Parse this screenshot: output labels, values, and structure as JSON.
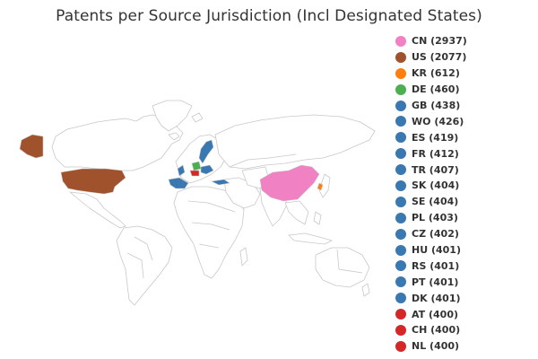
{
  "title": "Patents per Source Jurisdiction (Incl Designated States)",
  "land_color": "#ffffff",
  "border_color": "#c8c8c8",
  "legend": [
    {
      "code": "CN",
      "count": 2937,
      "label": "CN (2937)",
      "color": "#f081c3"
    },
    {
      "code": "US",
      "count": 2077,
      "label": "US (2077)",
      "color": "#a0522d"
    },
    {
      "code": "KR",
      "count": 612,
      "label": "KR (612)",
      "color": "#ff7f0e"
    },
    {
      "code": "DE",
      "count": 460,
      "label": "DE (460)",
      "color": "#4caf50"
    },
    {
      "code": "GB",
      "count": 438,
      "label": "GB (438)",
      "color": "#3a78b1"
    },
    {
      "code": "WO",
      "count": 426,
      "label": "WO (426)",
      "color": "#3a78b1"
    },
    {
      "code": "ES",
      "count": 419,
      "label": "ES (419)",
      "color": "#3a78b1"
    },
    {
      "code": "FR",
      "count": 412,
      "label": "FR (412)",
      "color": "#3a78b1"
    },
    {
      "code": "TR",
      "count": 407,
      "label": "TR (407)",
      "color": "#3a78b1"
    },
    {
      "code": "SK",
      "count": 404,
      "label": "SK (404)",
      "color": "#3a78b1"
    },
    {
      "code": "SE",
      "count": 404,
      "label": "SE (404)",
      "color": "#3a78b1"
    },
    {
      "code": "PL",
      "count": 403,
      "label": "PL (403)",
      "color": "#3a78b1"
    },
    {
      "code": "CZ",
      "count": 402,
      "label": "CZ (402)",
      "color": "#3a78b1"
    },
    {
      "code": "HU",
      "count": 401,
      "label": "HU (401)",
      "color": "#3a78b1"
    },
    {
      "code": "RS",
      "count": 401,
      "label": "RS (401)",
      "color": "#3a78b1"
    },
    {
      "code": "PT",
      "count": 401,
      "label": "PT (401)",
      "color": "#3a78b1"
    },
    {
      "code": "DK",
      "count": 401,
      "label": "DK (401)",
      "color": "#3a78b1"
    },
    {
      "code": "AT",
      "count": 400,
      "label": "AT (400)",
      "color": "#d62728"
    },
    {
      "code": "CH",
      "count": 400,
      "label": "CH (400)",
      "color": "#d62728"
    },
    {
      "code": "NL",
      "count": 400,
      "label": "NL (400)",
      "color": "#d62728"
    }
  ]
}
